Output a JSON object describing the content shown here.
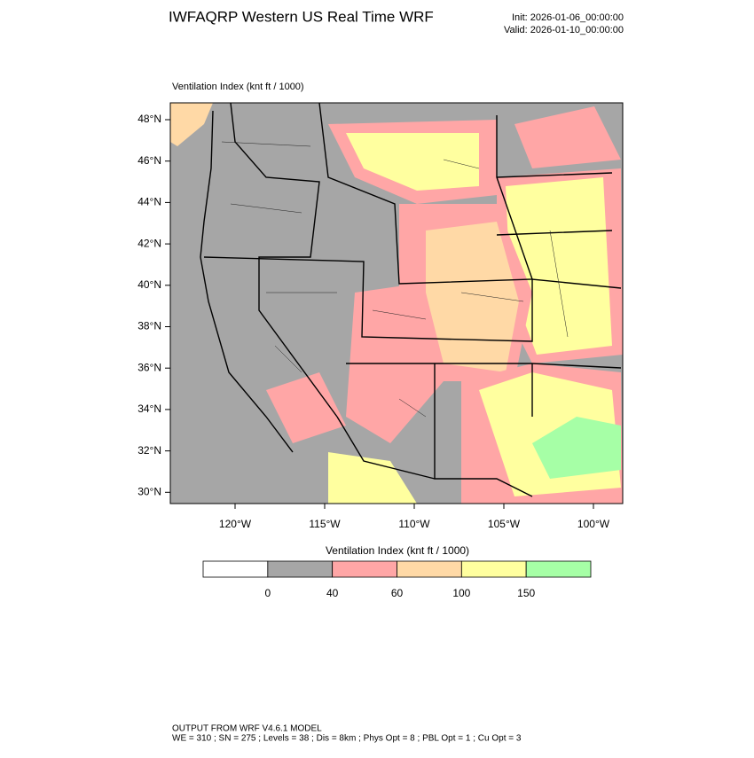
{
  "header": {
    "title": "IWFAQRP Western US Real Time WRF",
    "init": "Init: 2026-01-06_00:00:00",
    "valid": "Valid: 2026-01-10_00:00:00"
  },
  "map": {
    "label": "Ventilation Index   (knt ft / 1000)",
    "lat_labels": [
      "48°N",
      "46°N",
      "44°N",
      "42°N",
      "40°N",
      "38°N",
      "36°N",
      "34°N",
      "32°N",
      "30°N"
    ],
    "lon_labels": [
      "120°W",
      "115°W",
      "110°W",
      "105°W",
      "100°W"
    ]
  },
  "colorbar": {
    "title": "Ventilation Index   (knt ft / 1000)",
    "ticks": [
      0,
      40,
      60,
      100,
      150
    ],
    "colors": [
      "#ffffff",
      "#a6a6a6",
      "#ffa6a6",
      "#ffd9a6",
      "#ffff9f",
      "#a6ffa6"
    ]
  },
  "footer": {
    "line1": "OUTPUT FROM WRF V4.6.1 MODEL",
    "line2": "WE = 310 ; SN = 275 ; Levels = 38 ; Dis = 8km ; Phys Opt = 8 ; PBL Opt = 1 ; Cu Opt = 3"
  }
}
